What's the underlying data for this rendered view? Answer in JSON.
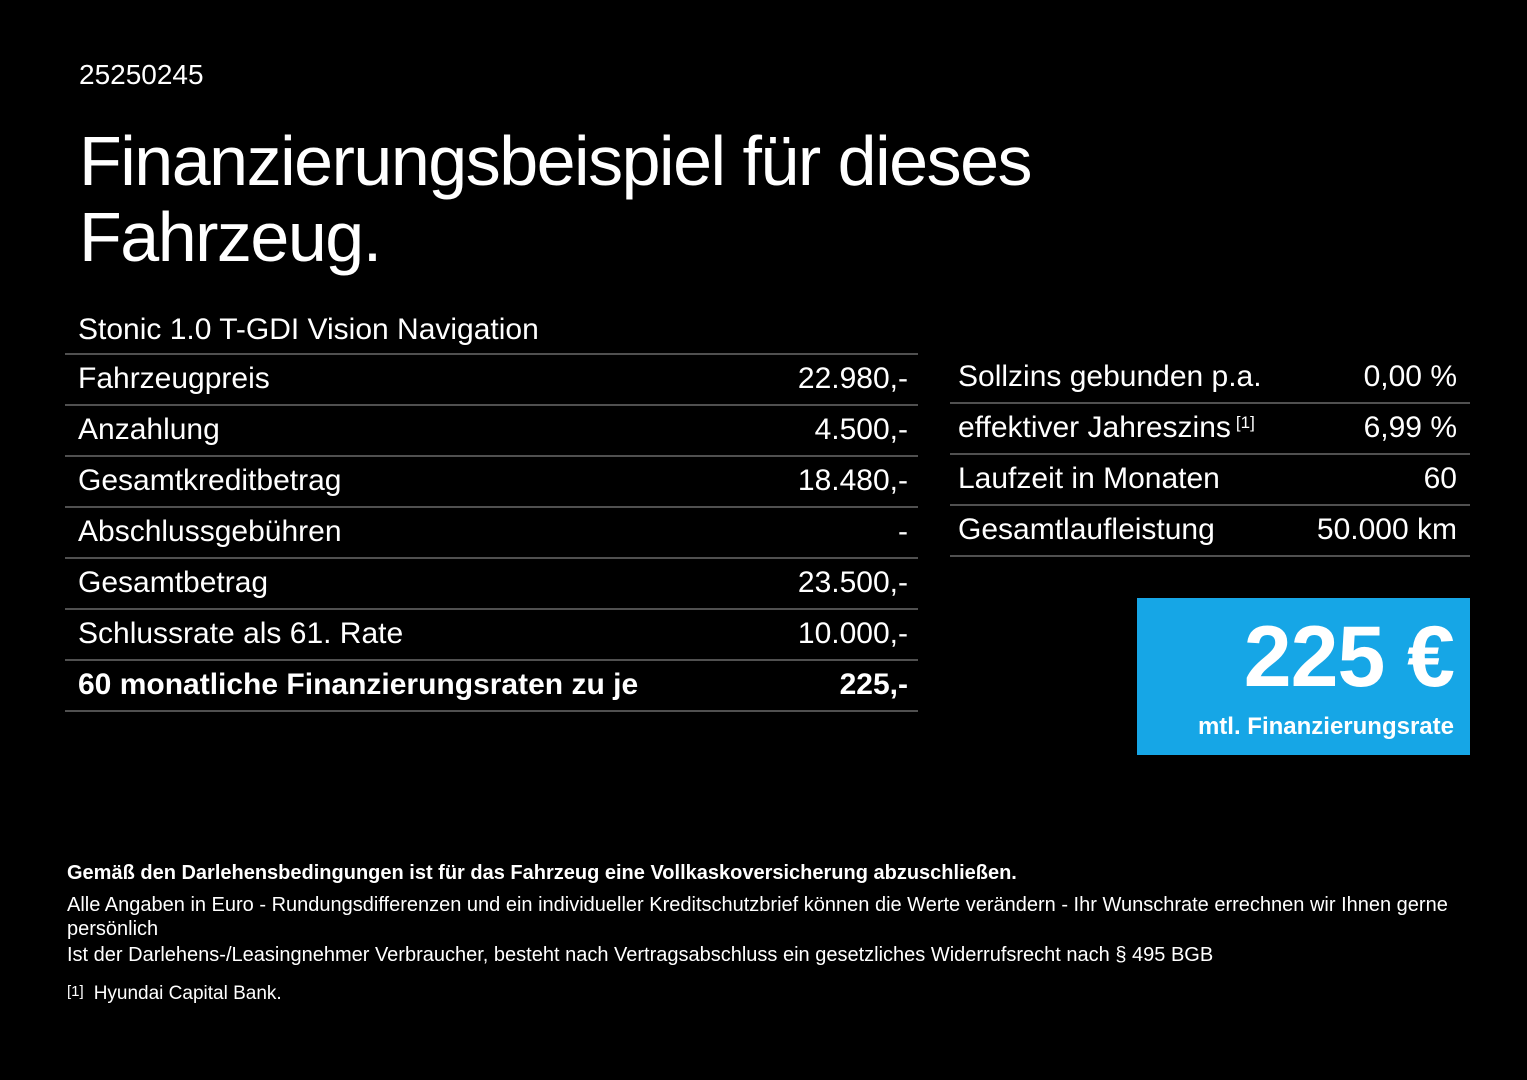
{
  "page": {
    "doc_number": "25250245",
    "title_line1": "Finanzierungsbeispiel für dieses",
    "title_line2": "Fahrzeug.",
    "subtitle": "Stonic 1.0 T-GDI Vision Navigation"
  },
  "left_table": {
    "rows": [
      {
        "label": "Fahrzeugpreis",
        "value": "22.980,-"
      },
      {
        "label": "Anzahlung",
        "value": "4.500,-"
      },
      {
        "label": "Gesamtkreditbetrag",
        "value": "18.480,-"
      },
      {
        "label": "Abschlussgebühren",
        "value": "-"
      },
      {
        "label": "Gesamtbetrag",
        "value": "23.500,-"
      },
      {
        "label": "Schlussrate als 61. Rate",
        "value": "10.000,-"
      },
      {
        "label": "60 monatliche Finanzierungsraten zu je",
        "value": "225,-"
      }
    ]
  },
  "right_table": {
    "rows": [
      {
        "label": "Sollzins gebunden p.a.",
        "value": "0,00 %"
      },
      {
        "label": "effektiver Jahreszins",
        "footnote_mark": "[1]",
        "value": "6,99 %"
      },
      {
        "label": "Laufzeit in Monaten",
        "value": "60"
      },
      {
        "label": "Gesamtlaufleistung",
        "value": "50.000 km"
      }
    ]
  },
  "rate_box": {
    "amount": "225 €",
    "caption": "mtl. Finanzierungsrate"
  },
  "footer": {
    "bold_note": "Gemäß den Darlehensbedingungen ist für das Fahrzeug eine Vollkaskoversicherung abzuschließen.",
    "note_line1": "Alle Angaben in Euro - Rundungsdifferenzen und ein individueller Kreditschutzbrief können die Werte verändern - Ihr Wunschrate errechnen wir Ihnen gerne persönlich",
    "note_line2": "Ist der Darlehens-/Leasingnehmer Verbraucher, besteht nach Vertragsabschluss ein gesetzliches Widerrufsrecht nach § 495 BGB",
    "footnote_mark": "[1]",
    "footnote_text": "Hyundai Capital Bank."
  },
  "colors": {
    "background": "#000000",
    "text": "#ffffff",
    "divider": "#505050",
    "accent_blue": "#16a6e6"
  }
}
